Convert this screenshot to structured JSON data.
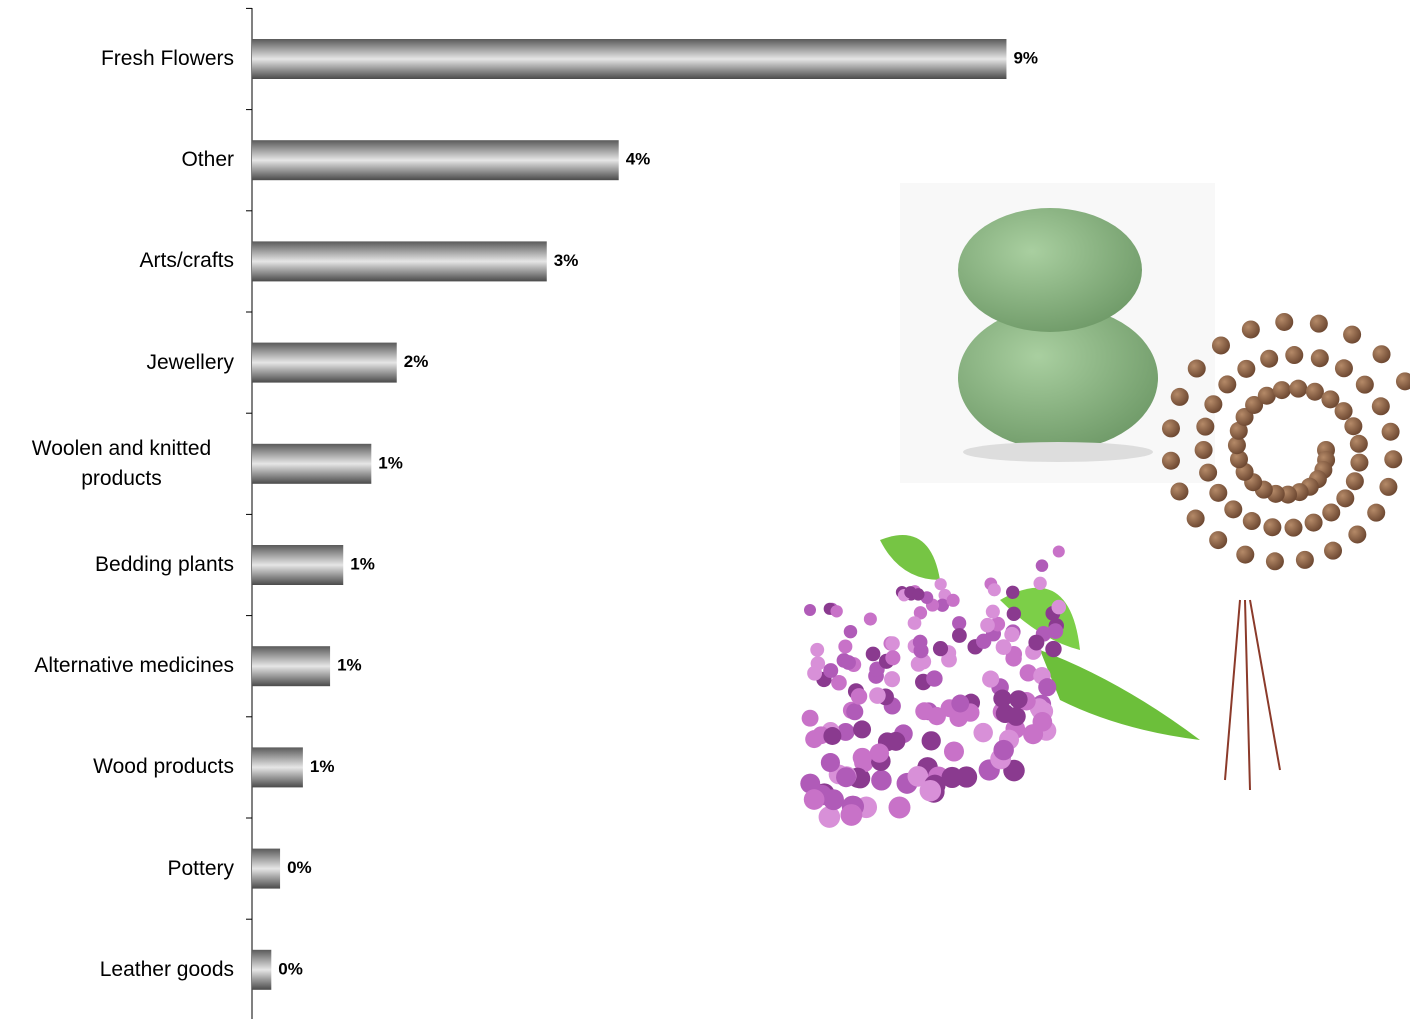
{
  "chart_data": {
    "type": "bar",
    "orientation": "horizontal",
    "categories": [
      "Fresh Flowers",
      "Other",
      "Arts/crafts",
      "Jewellery",
      "Woolen and knitted products",
      "Bedding plants",
      "Alternative medicines",
      "Wood products",
      "Pottery",
      "Leather goods"
    ],
    "values": [
      8.6,
      4.18,
      3.36,
      1.65,
      1.36,
      1.04,
      0.89,
      0.58,
      0.32,
      0.22
    ],
    "value_labels": [
      "9%",
      "4%",
      "3%",
      "2%",
      "1%",
      "1%",
      "1%",
      "1%",
      "0%",
      "0%"
    ],
    "color": "#808080",
    "xlim": [
      0,
      13.2
    ]
  }
}
